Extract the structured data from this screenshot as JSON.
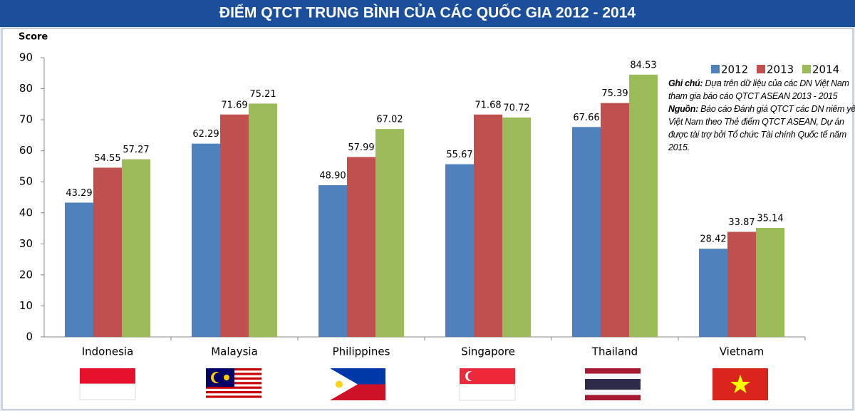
{
  "chart_data": {
    "type": "bar",
    "title": "ĐIỂM QTCT TRUNG BÌNH CỦA CÁC QUỐC GIA 2012 - 2014",
    "y_label": "Score",
    "categories": [
      "Indonesia",
      "Malaysia",
      "Philippines",
      "Singapore",
      "Thailand",
      "Vietnam"
    ],
    "series": [
      {
        "name": "2012",
        "color": "#4f81bd",
        "values": [
          43.29,
          62.29,
          48.9,
          55.67,
          67.66,
          28.42
        ],
        "value_labels": [
          "43.29",
          "62.29",
          "48.90",
          "55.67",
          "67.66",
          "28.42"
        ]
      },
      {
        "name": "2013",
        "color": "#c0504d",
        "values": [
          54.55,
          71.69,
          57.99,
          71.68,
          75.39,
          33.87
        ],
        "value_labels": [
          "54.55",
          "71.69",
          "57.99",
          "71.68",
          "75.39",
          "33.87"
        ]
      },
      {
        "name": "2014",
        "color": "#9bbb59",
        "values": [
          57.27,
          75.21,
          67.02,
          70.72,
          84.53,
          35.14
        ],
        "value_labels": [
          "57.27",
          "75.21",
          "67.02",
          "70.72",
          "84.53",
          "35.14"
        ]
      }
    ],
    "ylim": [
      0,
      90
    ],
    "yticks": [
      0,
      10,
      20,
      30,
      40,
      50,
      60,
      70,
      80,
      90
    ],
    "grid": false,
    "legend": "top-right",
    "notes": [
      {
        "label": "Ghi chú:",
        "text": "Dựa trên dữ liệu của các DN Việt Nam tham gia báo cáo QTCT ASEAN 2013 - 2015"
      },
      {
        "label": "Nguồn:",
        "text": "Báo cáo Đánh giá QTCT các DN niêm yết Việt Nam theo Thẻ điểm QTCT ASEAN, Dự án được tài trợ bởi Tổ chức Tài chính Quốc tế năm 2015."
      }
    ]
  }
}
